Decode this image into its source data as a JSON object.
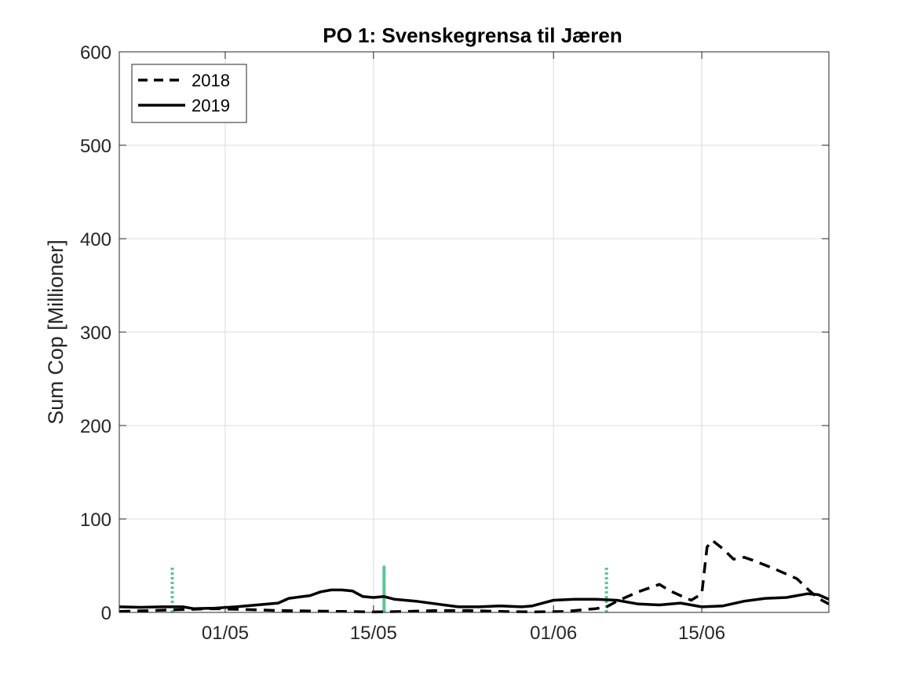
{
  "chart_data": {
    "type": "line",
    "title": "PO 1: Svenskegrensa til Jæren",
    "xlabel": "",
    "ylabel": "Sum Cop [Millioner]",
    "x_range": [
      "2019-04-21",
      "2019-06-27"
    ],
    "ylim": [
      0,
      600
    ],
    "y_ticks": [
      "0",
      "100",
      "200",
      "300",
      "400",
      "500",
      "600"
    ],
    "x_ticks": [
      {
        "date": "2019-05-01",
        "label": "01/05"
      },
      {
        "date": "2019-05-15",
        "label": "15/05"
      },
      {
        "date": "2019-06-01",
        "label": "01/06"
      },
      {
        "date": "2019-06-15",
        "label": "15/06"
      }
    ],
    "grid": true,
    "legend_position": "top-left",
    "colors": {
      "series": "#000000",
      "marker": "#5cc495"
    },
    "series": [
      {
        "name": "2018",
        "style": "dashed",
        "points": [
          [
            "2019-04-21",
            1
          ],
          [
            "2019-04-24",
            2
          ],
          [
            "2019-04-27",
            3
          ],
          [
            "2019-04-30",
            4
          ],
          [
            "2019-05-03",
            3
          ],
          [
            "2019-05-06",
            2
          ],
          [
            "2019-05-09",
            1.5
          ],
          [
            "2019-05-12",
            1
          ],
          [
            "2019-05-15",
            0.5
          ],
          [
            "2019-05-18",
            1
          ],
          [
            "2019-05-21",
            2
          ],
          [
            "2019-05-24",
            2
          ],
          [
            "2019-05-27",
            1
          ],
          [
            "2019-05-30",
            0.5
          ],
          [
            "2019-06-02",
            1
          ],
          [
            "2019-06-05",
            4
          ],
          [
            "2019-06-06",
            6
          ],
          [
            "2019-06-07",
            12
          ],
          [
            "2019-06-09",
            22
          ],
          [
            "2019-06-11",
            30
          ],
          [
            "2019-06-12",
            23
          ],
          [
            "2019-06-13",
            18
          ],
          [
            "2019-06-14",
            13
          ],
          [
            "2019-06-15",
            20
          ],
          [
            "2019-06-15.5",
            70
          ],
          [
            "2019-06-16",
            77
          ],
          [
            "2019-06-17",
            68
          ],
          [
            "2019-06-18",
            57
          ],
          [
            "2019-06-19",
            59
          ],
          [
            "2019-06-20",
            55
          ],
          [
            "2019-06-22",
            46
          ],
          [
            "2019-06-24",
            36
          ],
          [
            "2019-06-25",
            25
          ],
          [
            "2019-06-26",
            15
          ],
          [
            "2019-06-27",
            9
          ]
        ]
      },
      {
        "name": "2019",
        "style": "solid",
        "points": [
          [
            "2019-04-21",
            6
          ],
          [
            "2019-04-23",
            5.5
          ],
          [
            "2019-04-25",
            6
          ],
          [
            "2019-04-27",
            6
          ],
          [
            "2019-04-28",
            4
          ],
          [
            "2019-04-30",
            4.5
          ],
          [
            "2019-05-02",
            6
          ],
          [
            "2019-05-04",
            8
          ],
          [
            "2019-05-06",
            10
          ],
          [
            "2019-05-07",
            15
          ],
          [
            "2019-05-09",
            18
          ],
          [
            "2019-05-10",
            22
          ],
          [
            "2019-05-11",
            24
          ],
          [
            "2019-05-12",
            24
          ],
          [
            "2019-05-13",
            23
          ],
          [
            "2019-05-14",
            17
          ],
          [
            "2019-05-15",
            16
          ],
          [
            "2019-05-16",
            17
          ],
          [
            "2019-05-17",
            14
          ],
          [
            "2019-05-19",
            12
          ],
          [
            "2019-05-21",
            9
          ],
          [
            "2019-05-23",
            6
          ],
          [
            "2019-05-25",
            6
          ],
          [
            "2019-05-27",
            7
          ],
          [
            "2019-05-29",
            6
          ],
          [
            "2019-05-30",
            7
          ],
          [
            "2019-05-31",
            10
          ],
          [
            "2019-06-01",
            13
          ],
          [
            "2019-06-03",
            14
          ],
          [
            "2019-06-05",
            14
          ],
          [
            "2019-06-07",
            13
          ],
          [
            "2019-06-09",
            9
          ],
          [
            "2019-06-11",
            8
          ],
          [
            "2019-06-13",
            10
          ],
          [
            "2019-06-15",
            6
          ],
          [
            "2019-06-17",
            7
          ],
          [
            "2019-06-19",
            12
          ],
          [
            "2019-06-21",
            15
          ],
          [
            "2019-06-23",
            16
          ],
          [
            "2019-06-25",
            20
          ],
          [
            "2019-06-26",
            19
          ],
          [
            "2019-06-27",
            14
          ]
        ]
      }
    ],
    "vertical_markers": [
      {
        "date": "2019-04-26",
        "value": 50,
        "style": "dotted"
      },
      {
        "date": "2019-05-16",
        "value": 50,
        "style": "solid"
      },
      {
        "date": "2019-06-06",
        "value": 50,
        "style": "dotted"
      }
    ]
  }
}
